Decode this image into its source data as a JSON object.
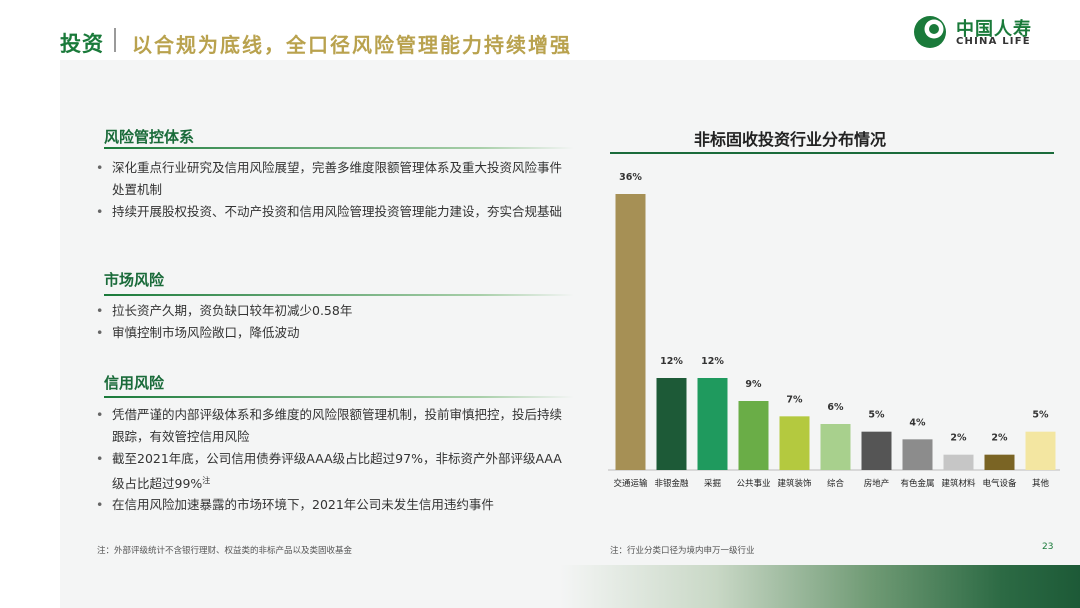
{
  "header": {
    "title_main": "投资",
    "title_sub": "以合规为底线，全口径风险管理能力持续增强",
    "logo_zh": "中国人寿",
    "logo_en": "CHINA LIFE"
  },
  "left": {
    "sections": [
      {
        "title": "风险管控体系",
        "bullets": [
          "深化重点行业研究及信用风险展望，完善多维度限额管理体系及重大投资风险事件处置机制",
          "持续开展股权投资、不动产投资和信用风险管理投资管理能力建设，夯实合规基础"
        ]
      },
      {
        "title": "市场风险",
        "bullets": [
          "拉长资产久期，资负缺口较年初减少0.58年",
          "审慎控制市场风险敞口，降低波动"
        ]
      },
      {
        "title": "信用风险",
        "bullets": [
          "凭借严谨的内部评级体系和多维度的风险限额管理机制，投前审慎把控，投后持续跟踪，有效管控信用风险",
          "截至2021年底，公司信用债券评级AAA级占比超过97%，非标资产外部评级AAA级占比超过99%",
          "在信用风险加速暴露的市场环境下，2021年公司未发生信用违约事件"
        ],
        "bullet2_sup": "注"
      }
    ],
    "note": "注：外部评级统计不含银行理财、权益类的非标产品以及类固收基金"
  },
  "right": {
    "note": "注：行业分类口径为境内申万一级行业",
    "page_number": "23"
  },
  "chart_data": {
    "type": "bar",
    "title": "非标固收投资行业分布情况",
    "categories": [
      "交通运输",
      "非银金融",
      "采掘",
      "公共事业",
      "建筑装饰",
      "综合",
      "房地产",
      "有色金属",
      "建筑材料",
      "电气设备",
      "其他"
    ],
    "values": [
      36,
      12,
      12,
      9,
      7,
      6,
      5,
      4,
      2,
      2,
      5
    ],
    "value_labels": [
      "36%",
      "12%",
      "12%",
      "9%",
      "7%",
      "6%",
      "5%",
      "4%",
      "2%",
      "2%",
      "5%"
    ],
    "colors": [
      "#a69055",
      "#1d5a37",
      "#1f9a5e",
      "#6aad47",
      "#b4c93f",
      "#a8d08d",
      "#555555",
      "#8c8c8c",
      "#c6c6c6",
      "#7a6424",
      "#f3e6a1"
    ],
    "ylim": [
      0,
      36
    ],
    "grid": false,
    "legend": "none"
  }
}
